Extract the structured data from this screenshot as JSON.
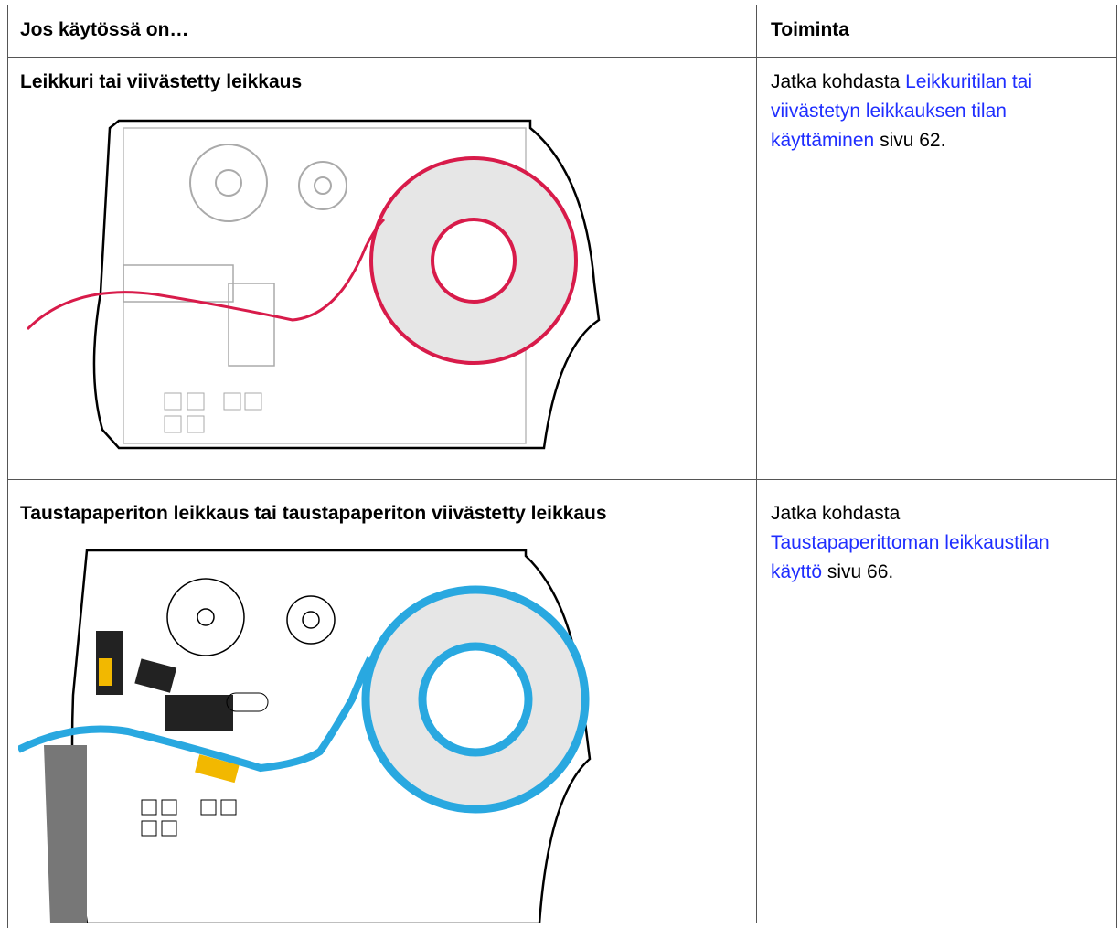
{
  "table": {
    "header": [
      "Jos käytössä on…",
      "Toiminta"
    ],
    "rows": [
      {
        "mode": "Leikkuri tai viivästetty leikkaus",
        "action_prefix": "Jatka kohdasta",
        "action_link": "Leikkuritilan tai viivästetyn leikkauksen tilan käyttäminen",
        "action_suffix": "sivu 62."
      },
      {
        "mode": "Taustapaperiton leikkaus tai taustapaperiton viivästetty leikkaus",
        "action_prefix": "Jatka kohdasta",
        "action_link": "Taustapaperittoman leikkaustilan käyttö",
        "action_suffix": "sivu 66."
      }
    ]
  }
}
